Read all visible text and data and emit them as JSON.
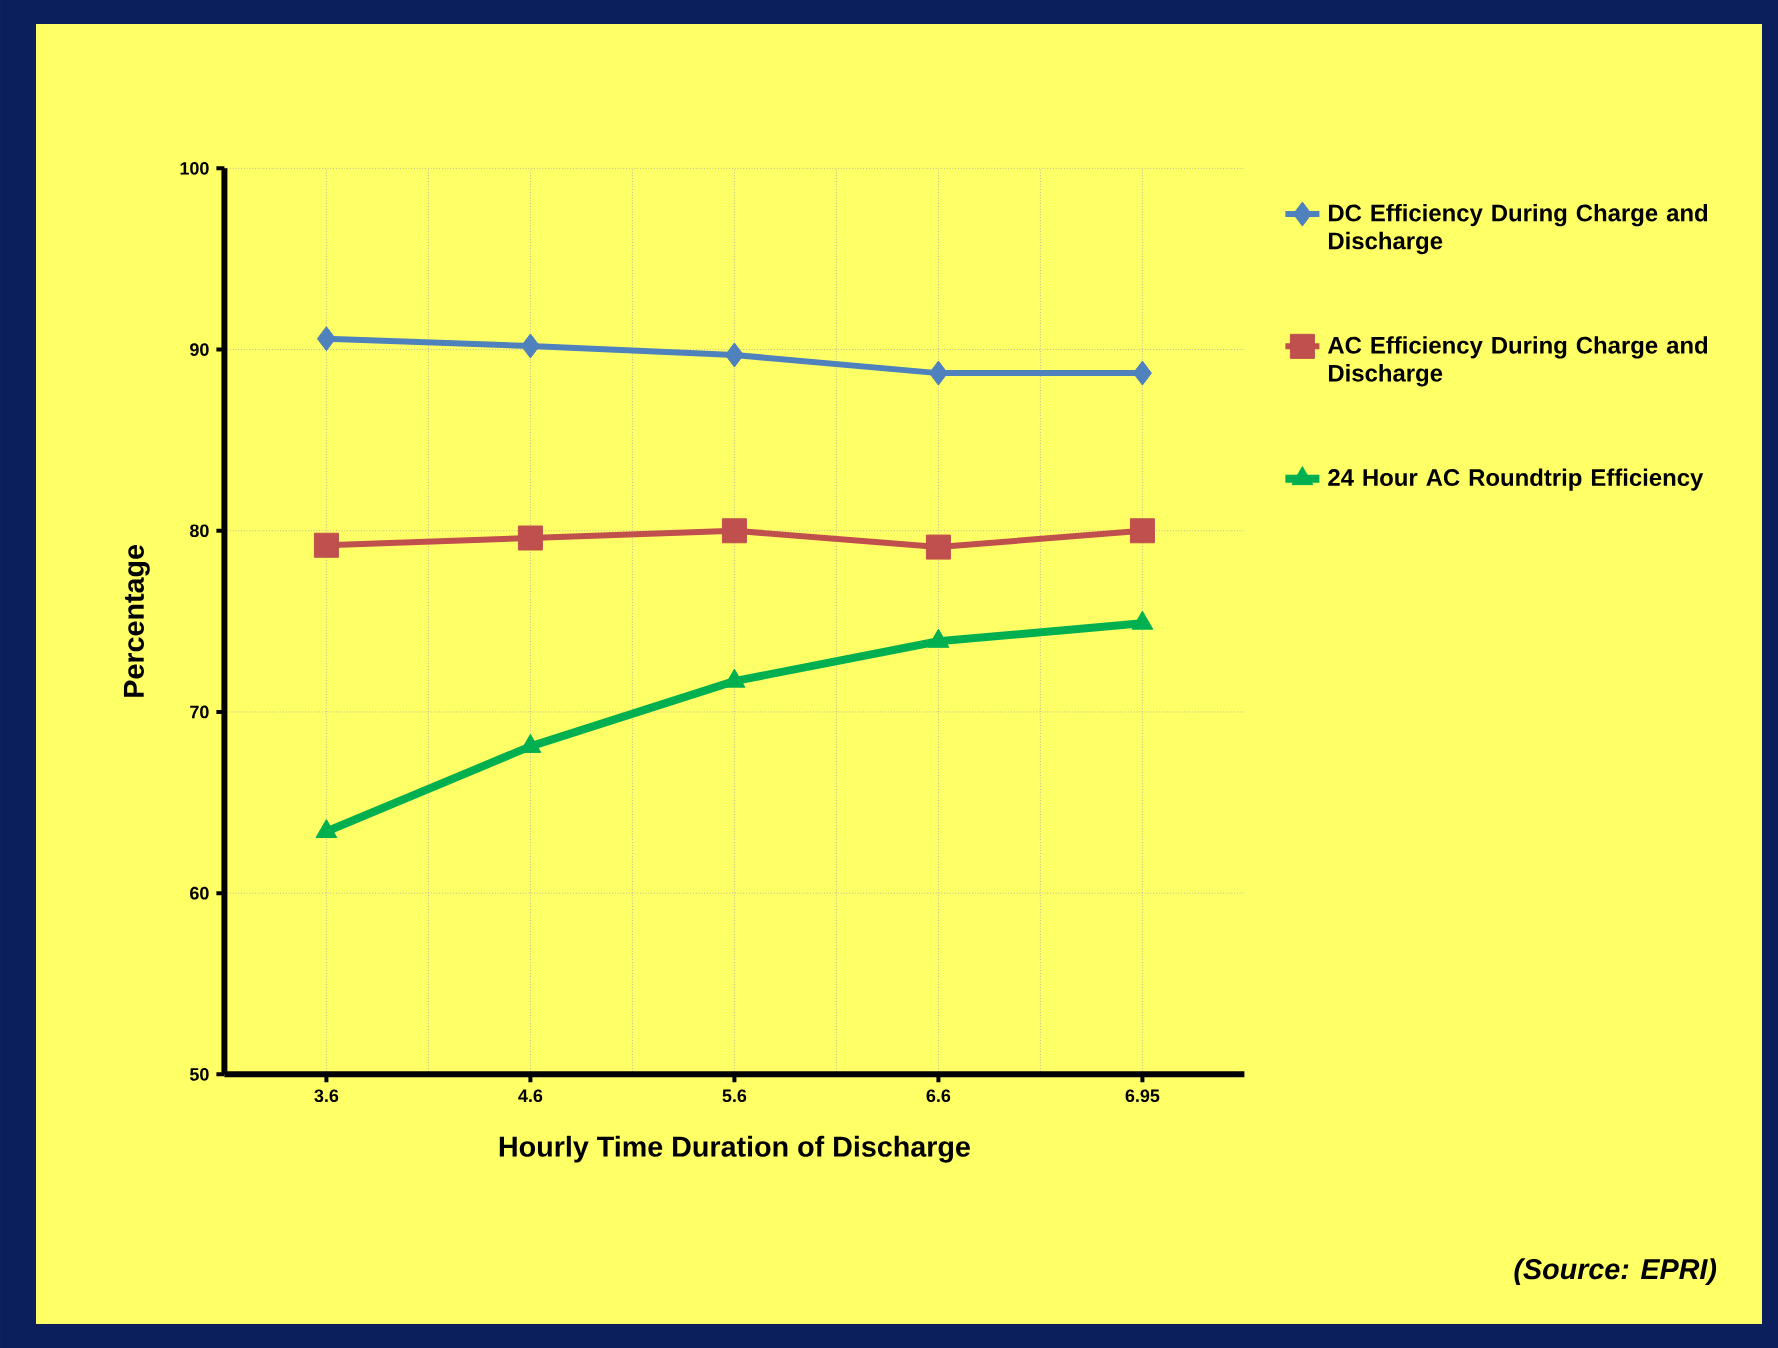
{
  "chart_data": {
    "type": "line",
    "xlabel": "Hourly Time Duration of Discharge",
    "ylabel": "Percentage",
    "categories": [
      "3.6",
      "4.6",
      "5.6",
      "6.6",
      "6.95"
    ],
    "ylim": [
      50,
      100
    ],
    "yticks": [
      50,
      60,
      70,
      80,
      90,
      100
    ],
    "grid": true,
    "legend": "right",
    "series": [
      {
        "name": "DC Efficiency During Charge and Discharge",
        "color": "#4f81bd",
        "marker": "diamond",
        "values": [
          90.6,
          90.2,
          89.7,
          88.7,
          88.7
        ]
      },
      {
        "name": "AC Efficiency During Charge and Discharge",
        "color": "#c0504d",
        "marker": "square",
        "values": [
          79.2,
          79.6,
          80.0,
          79.1,
          80.0
        ]
      },
      {
        "name": "24 Hour AC Roundtrip Efficiency",
        "color": "#00b050",
        "marker": "triangle",
        "values": [
          63.4,
          68.1,
          71.7,
          73.9,
          74.9
        ]
      }
    ],
    "annotations": [
      "(Source: EPRI)"
    ]
  }
}
